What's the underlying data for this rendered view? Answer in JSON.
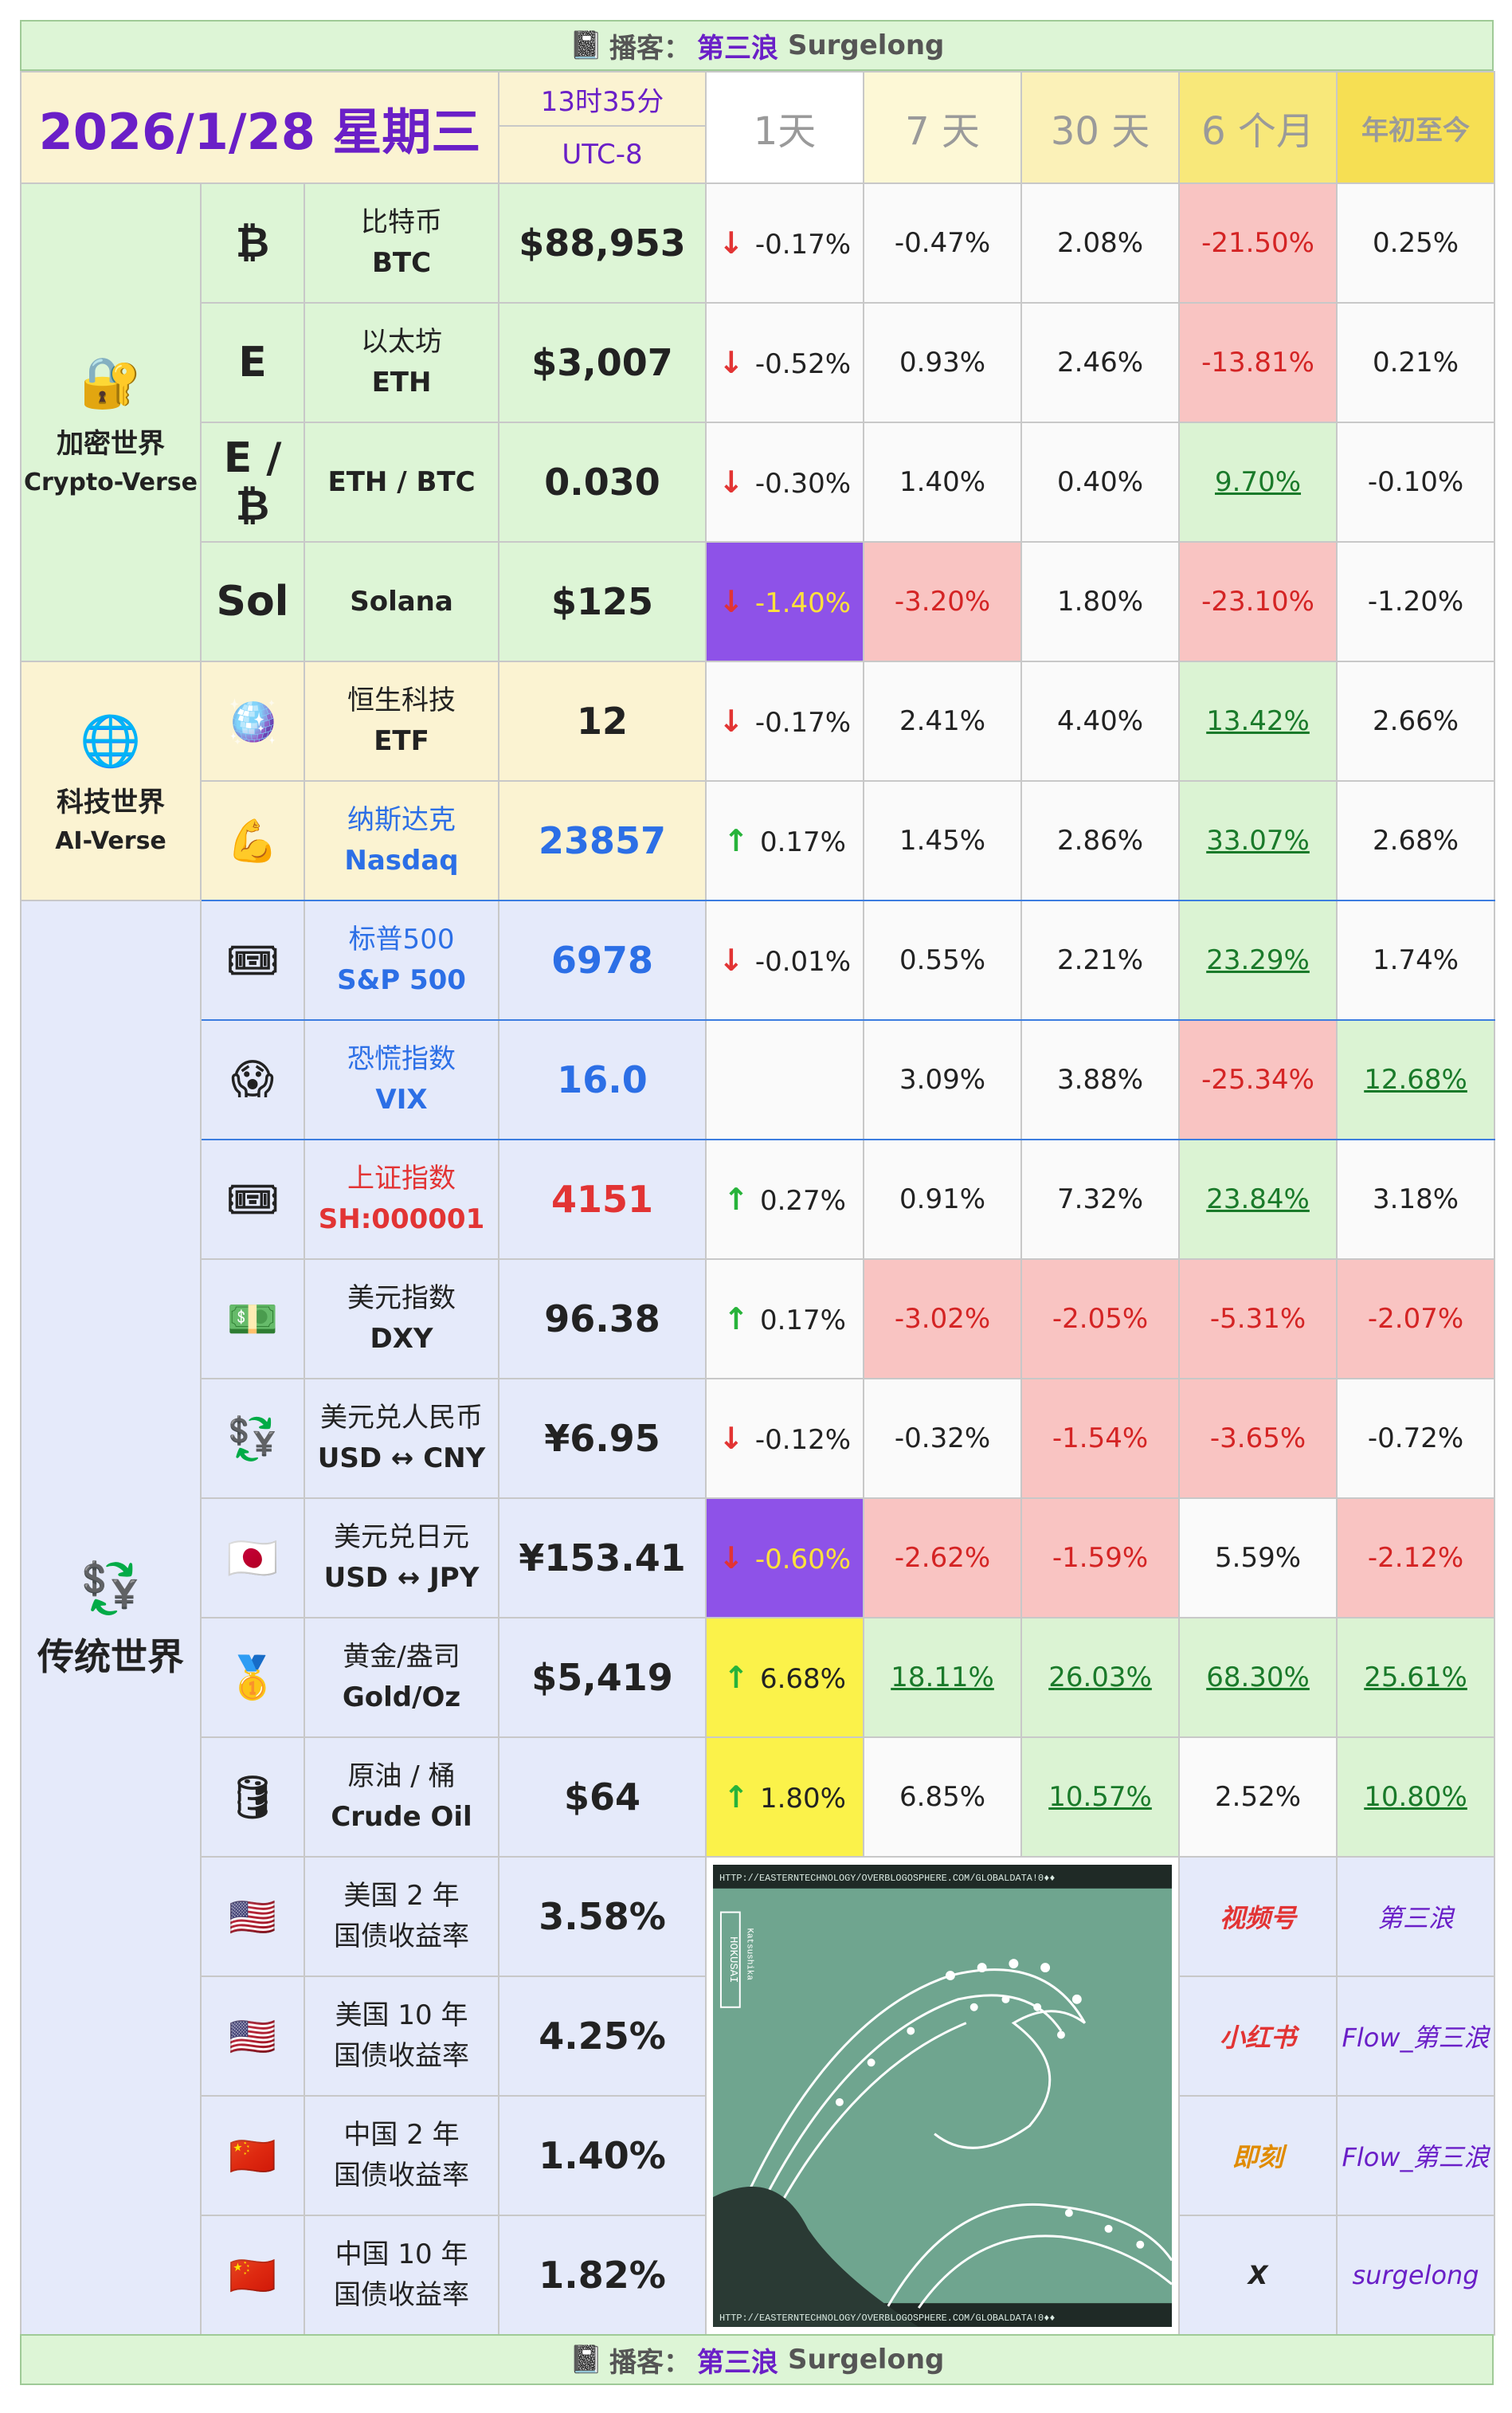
{
  "banner": {
    "label": "播客：",
    "name": "第三浪",
    "alias": "Surgelong"
  },
  "header": {
    "date": "2026/1/28 星期三",
    "time": "13时35分",
    "tz": "UTC-8",
    "cols": [
      "1天",
      "7 天",
      "30 天",
      "6 个月",
      "年初至今"
    ]
  },
  "categories": {
    "crypto": {
      "icon": "lock-icon",
      "cn": "加密世界",
      "en": "Crypto-Verse"
    },
    "tech": {
      "icon": "globe-icon",
      "cn": "科技世界",
      "en": "AI-Verse"
    },
    "trad": {
      "icon": "currency-exchange-icon",
      "cn": "传统世界"
    }
  },
  "rows": [
    {
      "icon": "₿",
      "cn": "比特币",
      "en": "BTC",
      "price": "$88,953",
      "d1": "-0.17%",
      "d7": "-0.47%",
      "d30": "2.08%",
      "m6": "-21.50%",
      "ytd": "0.25%"
    },
    {
      "icon": "Ε",
      "cn": "以太坊",
      "en": "ETH",
      "price": "$3,007",
      "d1": "-0.52%",
      "d7": "0.93%",
      "d30": "2.46%",
      "m6": "-13.81%",
      "ytd": "0.21%"
    },
    {
      "icon": "Ε / ₿",
      "cn": "",
      "en": "ETH / BTC",
      "price": "0.030",
      "d1": "-0.30%",
      "d7": "1.40%",
      "d30": "0.40%",
      "m6": "9.70%",
      "ytd": "-0.10%"
    },
    {
      "icon": "Sol",
      "cn": "",
      "en": "Solana",
      "price": "$125",
      "d1": "-1.40%",
      "d7": "-3.20%",
      "d30": "1.80%",
      "m6": "-23.10%",
      "ytd": "-1.20%"
    },
    {
      "icon": "disco-ball-icon",
      "cn": "恒生科技",
      "en": "ETF",
      "price": "12",
      "d1": "-0.17%",
      "d7": "2.41%",
      "d30": "4.40%",
      "m6": "13.42%",
      "ytd": "2.66%"
    },
    {
      "icon": "flexed-biceps-icon",
      "cn": "纳斯达克",
      "en": "Nasdaq",
      "price": "23857",
      "d1": "0.17%",
      "d7": "1.45%",
      "d30": "2.86%",
      "m6": "33.07%",
      "ytd": "2.68%"
    },
    {
      "icon": "ticket-icon",
      "cn": "标普500",
      "en": "S&P 500",
      "price": "6978",
      "d1": "-0.01%",
      "d7": "0.55%",
      "d30": "2.21%",
      "m6": "23.29%",
      "ytd": "1.74%"
    },
    {
      "icon": "scream-face-icon",
      "cn": "恐慌指数",
      "en": "VIX",
      "price": "16.0",
      "d1": "",
      "d7": "3.09%",
      "d30": "3.88%",
      "m6": "-25.34%",
      "ytd": "12.68%"
    },
    {
      "icon": "ticket-icon",
      "cn": "上证指数",
      "en": "SH:000001",
      "price": "4151",
      "d1": "0.27%",
      "d7": "0.91%",
      "d30": "7.32%",
      "m6": "23.84%",
      "ytd": "3.18%"
    },
    {
      "icon": "dollar-banknote-icon",
      "cn": "美元指数",
      "en": "DXY",
      "price": "96.38",
      "d1": "0.17%",
      "d7": "-3.02%",
      "d30": "-2.05%",
      "m6": "-5.31%",
      "ytd": "-2.07%"
    },
    {
      "icon": "currency-exchange-icon",
      "cn": "美元兑人民币",
      "en": "USD ↔ CNY",
      "price": "¥6.95",
      "d1": "-0.12%",
      "d7": "-0.32%",
      "d30": "-1.54%",
      "m6": "-3.65%",
      "ytd": "-0.72%"
    },
    {
      "icon": "japan-flag-icon",
      "cn": "美元兑日元",
      "en": "USD ↔ JPY",
      "price": "¥153.41",
      "d1": "-0.60%",
      "d7": "-2.62%",
      "d30": "-1.59%",
      "m6": "5.59%",
      "ytd": "-2.12%"
    },
    {
      "icon": "gold-bar-icon",
      "cn": "黄金/盎司",
      "en": "Gold/Oz",
      "price": "$5,419",
      "d1": "6.68%",
      "d7": "18.11%",
      "d30": "26.03%",
      "m6": "68.30%",
      "ytd": "25.61%"
    },
    {
      "icon": "oil-barrel-icon",
      "cn": "原油 / 桶",
      "en": "Crude Oil",
      "price": "$64",
      "d1": "1.80%",
      "d7": "6.85%",
      "d30": "10.57%",
      "m6": "2.52%",
      "ytd": "10.80%"
    }
  ],
  "bonds": [
    {
      "icon": "us-flag-icon",
      "cn1": "美国 2 年",
      "cn2": "国债收益率",
      "price": "3.58%"
    },
    {
      "icon": "us-flag-icon",
      "cn1": "美国 10 年",
      "cn2": "国债收益率",
      "price": "4.25%"
    },
    {
      "icon": "china-flag-icon",
      "cn1": "中国 2 年",
      "cn2": "国债收益率",
      "price": "1.40%"
    },
    {
      "icon": "china-flag-icon",
      "cn1": "中国 10 年",
      "cn2": "国债收益率",
      "price": "1.82%"
    }
  ],
  "social": [
    {
      "platform": "视频号",
      "handle": "第三浪"
    },
    {
      "platform": "小红书",
      "handle": "Flow_第三浪"
    },
    {
      "platform": "即刻",
      "handle": "Flow_第三浪"
    },
    {
      "platform": "X",
      "handle": "surgelong"
    }
  ],
  "image": {
    "top_text": "HTTP://EASTERNTECHNOLOGY/OVERBLOGOSPHERE.COM/GLOBALDATA!0♦♦",
    "bottom_text": "HTTP://EASTERNTECHNOLOGY/OVERBLOGOSPHERE.COM/GLOBALDATA!0♦♦",
    "tag": "HOKUSAI",
    "subtag": "Katsushika"
  }
}
